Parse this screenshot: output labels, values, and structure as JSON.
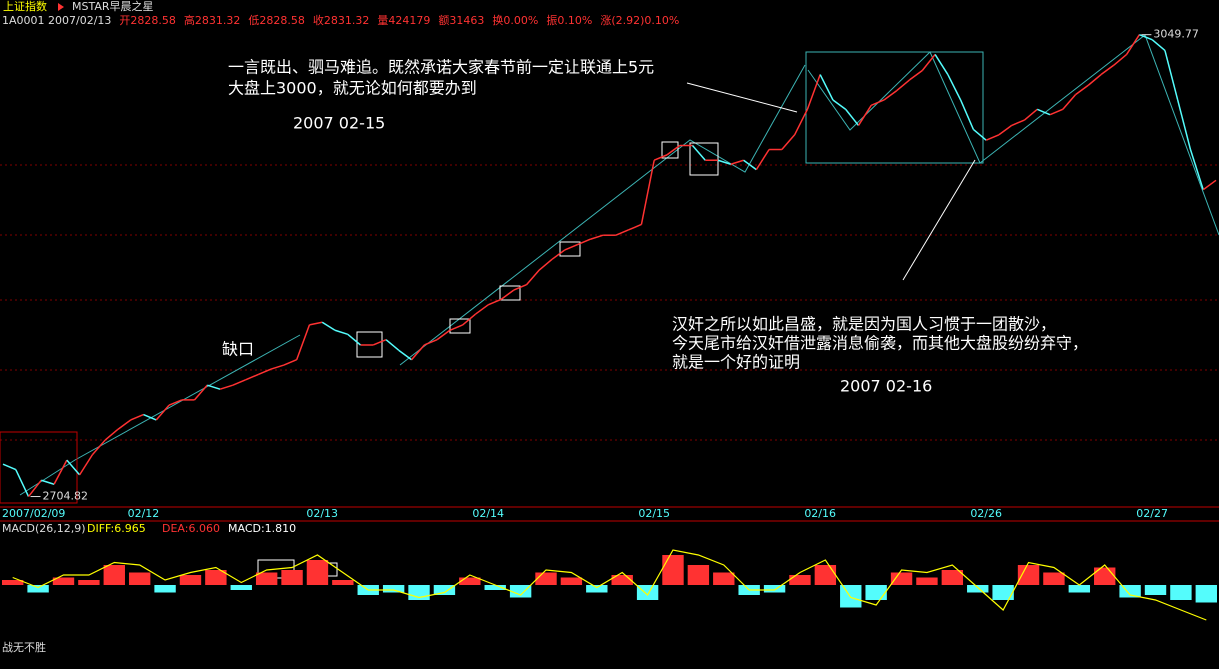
{
  "header": {
    "index_name": "上证指数",
    "indicator": "MSTAR早晨之星",
    "quote": [
      "1A0001 2007/02/13",
      "开2828.58",
      "高2831.32",
      "低2828.58",
      "收2831.32",
      "量424179",
      "额31463",
      "换0.00%",
      "振0.10%",
      "涨(2.92)0.10%"
    ]
  },
  "footer": "战无不胜",
  "chart_data": [
    {
      "type": "line",
      "categories": [
        "2007/02/09",
        null,
        null,
        null,
        null,
        null,
        null,
        null,
        null,
        null,
        null,
        "02/12",
        null,
        null,
        null,
        null,
        null,
        null,
        null,
        null,
        null,
        null,
        null,
        null,
        null,
        "02/13",
        null,
        null,
        null,
        null,
        null,
        null,
        null,
        null,
        null,
        null,
        null,
        null,
        "02/14",
        null,
        null,
        null,
        null,
        null,
        null,
        null,
        null,
        null,
        null,
        null,
        null,
        "02/15",
        null,
        null,
        null,
        null,
        null,
        null,
        null,
        null,
        null,
        null,
        null,
        null,
        "02/16",
        null,
        null,
        null,
        null,
        null,
        null,
        null,
        null,
        null,
        null,
        null,
        null,
        "02/26",
        null,
        null,
        null,
        null,
        null,
        null,
        null,
        null,
        null,
        null,
        null,
        null,
        "02/27",
        null,
        null,
        null,
        null,
        null
      ],
      "values": [
        2729,
        2725,
        2704.82,
        2717,
        2714,
        2732,
        2721,
        2736,
        2747,
        2755,
        2762,
        2766,
        2762,
        2773,
        2777,
        2777,
        2788,
        2785,
        2788,
        2792,
        2796,
        2800,
        2803,
        2807,
        2833,
        2835,
        2829,
        2826,
        2818,
        2818,
        2822,
        2814,
        2807,
        2818,
        2822,
        2829,
        2833,
        2841,
        2848,
        2852,
        2859,
        2863,
        2874,
        2882,
        2889,
        2893,
        2897,
        2900,
        2900,
        2904,
        2908,
        2956,
        2960,
        2967,
        2967,
        2956,
        2956,
        2953,
        2956,
        2949,
        2964,
        2964,
        2975,
        2994,
        3020,
        3001,
        2994,
        2982,
        2997,
        3001,
        3008,
        3016,
        3023,
        3035,
        3020,
        3001,
        2979,
        2971,
        2975,
        2982,
        2986,
        2994,
        2990,
        2994,
        3005,
        3012,
        3020,
        3027,
        3035,
        3049.77,
        3046,
        3038,
        3001,
        2964,
        2934,
        2941
      ],
      "colors": [
        "#ff3232",
        "#54fcfc"
      ],
      "ylim": [
        2697,
        3057
      ],
      "annotations": [
        "一言既出、驷马难追。既然承诺大家春节前一定让联通上5元",
        "大盘上3000，就无论如何都要办到",
        "2007 02-15",
        "缺口",
        "汉奸之所以如此昌盛，就是因为国人习惯于一团散沙，",
        "今天尾市给汉奸借泄露消息偷袭，而其他大盘股纷纷弃守，",
        "就是一个好的证明",
        "2007 02-16"
      ]
    },
    {
      "type": "bar",
      "title": "MACD(26,12,9)",
      "legend": [
        "DIFF:6.965",
        "DEA:6.060",
        "MACD:1.810"
      ],
      "values": [
        2,
        -3,
        3,
        2,
        8,
        5,
        -3,
        4,
        6,
        -2,
        5,
        6,
        10,
        2,
        -4,
        -3,
        -6,
        -4,
        3,
        -2,
        -5,
        5,
        3,
        -3,
        4,
        -6,
        12,
        8,
        5,
        -4,
        -3,
        4,
        8,
        -9,
        -6,
        5,
        3,
        6,
        -3,
        -6,
        8,
        5,
        -3,
        7,
        -5,
        -4,
        -6,
        -7
      ],
      "diff": [
        3,
        -1,
        4,
        4,
        9,
        8,
        2,
        5,
        7,
        1,
        6,
        7,
        12,
        5,
        -2,
        -2,
        -5,
        -3,
        4,
        0,
        -4,
        6,
        5,
        -1,
        5,
        -4,
        14,
        12,
        8,
        -2,
        -2,
        5,
        10,
        -5,
        -8,
        6,
        5,
        8,
        -1,
        -10,
        9,
        7,
        0,
        8,
        -4,
        -6,
        -10,
        -14
      ],
      "colors": [
        "#ff3232",
        "#54fcfc",
        "#ffff00"
      ],
      "ylim": [
        -30,
        20
      ]
    }
  ]
}
